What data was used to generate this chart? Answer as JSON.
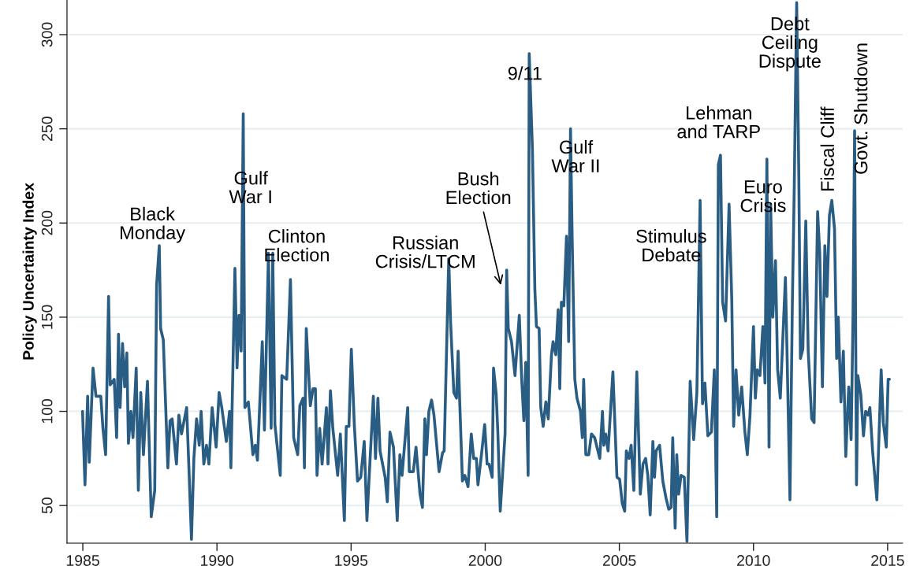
{
  "chart_data": {
    "type": "line",
    "ylabel": "Policy Uncertainty Index",
    "xlim": [
      1984.41,
      2015.56
    ],
    "ylim": [
      30,
      318.4
    ],
    "xticks": [
      1985,
      1990,
      1995,
      2000,
      2005,
      2010,
      2015
    ],
    "yticks": [
      50,
      100,
      150,
      200,
      250,
      300
    ],
    "grid": "y",
    "marker": "none",
    "line_style": "solid",
    "series": [
      {
        "color": "#2a5d84",
        "x": [
          1984.99,
          1985.08,
          1985.18,
          1985.24,
          1985.38,
          1985.49,
          1985.67,
          1985.75,
          1985.85,
          1985.96,
          1986.02,
          1986.17,
          1986.26,
          1986.33,
          1986.39,
          1986.48,
          1986.56,
          1986.64,
          1986.7,
          1986.79,
          1986.87,
          1986.99,
          1987.07,
          1987.16,
          1987.26,
          1987.41,
          1987.55,
          1987.68,
          1987.75,
          1987.85,
          1987.9,
          1988.0,
          1988.17,
          1988.25,
          1988.33,
          1988.49,
          1988.58,
          1988.68,
          1988.87,
          1988.96,
          1989.05,
          1989.14,
          1989.24,
          1989.34,
          1989.41,
          1989.51,
          1989.61,
          1989.7,
          1989.82,
          1989.97,
          1990.08,
          1990.18,
          1990.35,
          1990.47,
          1990.52,
          1990.67,
          1990.75,
          1990.82,
          1990.9,
          1990.98,
          1991.04,
          1991.17,
          1991.34,
          1991.43,
          1991.51,
          1991.69,
          1991.77,
          1991.92,
          1992.02,
          1992.08,
          1992.16,
          1992.36,
          1992.42,
          1992.6,
          1992.74,
          1992.86,
          1993.01,
          1993.09,
          1993.21,
          1993.26,
          1993.33,
          1993.48,
          1993.58,
          1993.67,
          1993.73,
          1993.83,
          1993.92,
          1994.08,
          1994.14,
          1994.23,
          1994.32,
          1994.5,
          1994.6,
          1994.75,
          1994.82,
          1994.92,
          1995.01,
          1995.12,
          1995.24,
          1995.36,
          1995.49,
          1995.59,
          1995.71,
          1995.83,
          1995.91,
          1996.0,
          1996.08,
          1996.27,
          1996.35,
          1996.45,
          1996.58,
          1996.72,
          1996.82,
          1996.9,
          1997.11,
          1997.17,
          1997.32,
          1997.42,
          1997.57,
          1997.66,
          1997.75,
          1997.81,
          1997.9,
          1998.0,
          1998.09,
          1998.21,
          1998.28,
          1998.41,
          1998.47,
          1998.64,
          1998.71,
          1998.83,
          1998.93,
          1998.99,
          1999.05,
          1999.15,
          1999.24,
          1999.36,
          1999.48,
          1999.57,
          1999.67,
          1999.73,
          1999.86,
          1999.98,
          2000.07,
          2000.14,
          2000.26,
          2000.31,
          2000.41,
          2000.47,
          2000.56,
          2000.74,
          2000.8,
          2000.86,
          2000.98,
          2001.11,
          2001.27,
          2001.36,
          2001.44,
          2001.51,
          2001.6,
          2001.64,
          2001.76,
          2001.85,
          2001.91,
          2002.01,
          2002.07,
          2002.16,
          2002.26,
          2002.35,
          2002.47,
          2002.53,
          2002.63,
          2002.72,
          2002.78,
          2002.84,
          2002.93,
          2003.03,
          2003.11,
          2003.18,
          2003.24,
          2003.34,
          2003.42,
          2003.55,
          2003.62,
          2003.67,
          2003.75,
          2003.86,
          2003.96,
          2004.08,
          2004.27,
          2004.37,
          2004.42,
          2004.49,
          2004.58,
          2004.76,
          2004.91,
          2005.01,
          2005.11,
          2005.2,
          2005.26,
          2005.36,
          2005.44,
          2005.54,
          2005.65,
          2005.78,
          2005.88,
          2005.98,
          2006.06,
          2006.15,
          2006.25,
          2006.31,
          2006.37,
          2006.5,
          2006.62,
          2006.74,
          2006.84,
          2006.93,
          2006.99,
          2007.08,
          2007.14,
          2007.21,
          2007.3,
          2007.42,
          2007.52,
          2007.64,
          2007.77,
          2007.89,
          2008.01,
          2008.1,
          2008.19,
          2008.3,
          2008.43,
          2008.54,
          2008.63,
          2008.69,
          2008.77,
          2008.85,
          2008.96,
          2009.09,
          2009.19,
          2009.26,
          2009.35,
          2009.45,
          2009.56,
          2009.68,
          2009.77,
          2009.87,
          2010.0,
          2010.07,
          2010.14,
          2010.24,
          2010.35,
          2010.43,
          2010.5,
          2010.58,
          2010.64,
          2010.72,
          2010.82,
          2010.9,
          2011.0,
          2011.19,
          2011.25,
          2011.36,
          2011.45,
          2011.52,
          2011.61,
          2011.69,
          2011.75,
          2011.84,
          2011.95,
          2012.04,
          2012.17,
          2012.26,
          2012.39,
          2012.47,
          2012.57,
          2012.66,
          2012.74,
          2012.83,
          2012.92,
          2013.02,
          2013.1,
          2013.16,
          2013.26,
          2013.35,
          2013.44,
          2013.55,
          2013.64,
          2013.71,
          2013.77,
          2013.84,
          2013.89,
          2014.0,
          2014.1,
          2014.18,
          2014.27,
          2014.34,
          2014.44,
          2014.6,
          2014.76,
          2014.84,
          2014.95,
          2015.02,
          2015.07
        ],
        "values": [
          100,
          61,
          108,
          73,
          123,
          108,
          108,
          91,
          77,
          161,
          114,
          117,
          86,
          141,
          102,
          136,
          113,
          131,
          83,
          100,
          86,
          123,
          58,
          110,
          77,
          116,
          44,
          58,
          167,
          188,
          144,
          138,
          70,
          95,
          96,
          72,
          98,
          88,
          102,
          68,
          32,
          75,
          96,
          82,
          100,
          72,
          82,
          72,
          102,
          81,
          110,
          102,
          84,
          100,
          70,
          176,
          123,
          151,
          132,
          258,
          102,
          105,
          77,
          82,
          74,
          137,
          90,
          184,
          91,
          184,
          93,
          66,
          119,
          117,
          170,
          86,
          77,
          103,
          107,
          70,
          144,
          103,
          112,
          112,
          66,
          91,
          72,
          102,
          72,
          111,
          91,
          66,
          88,
          42,
          92,
          92,
          133,
          93,
          63,
          65,
          84,
          42,
          75,
          108,
          75,
          107,
          79,
          65,
          52,
          89,
          81,
          42,
          77,
          66,
          102,
          68,
          68,
          81,
          56,
          49,
          96,
          77,
          100,
          106,
          98,
          79,
          68,
          78,
          79,
          181,
          147,
          110,
          107,
          132,
          105,
          63,
          66,
          60,
          88,
          75,
          75,
          61,
          77,
          93,
          72,
          72,
          65,
          123,
          109,
          89,
          47,
          88,
          175,
          144,
          137,
          119,
          151,
          117,
          95,
          126,
          66,
          290,
          239,
          165,
          145,
          144,
          102,
          92,
          105,
          96,
          130,
          137,
          130,
          154,
          112,
          158,
          156,
          193,
          137,
          250,
          193,
          117,
          107,
          100,
          86,
          117,
          77,
          77,
          88,
          86,
          75,
          100,
          82,
          88,
          79,
          121,
          65,
          64,
          51,
          47,
          79,
          75,
          82,
          58,
          121,
          56,
          72,
          75,
          66,
          45,
          84,
          65,
          79,
          82,
          63,
          54,
          48,
          49,
          86,
          38,
          77,
          56,
          66,
          65,
          31,
          116,
          85,
          110,
          212,
          104,
          115,
          87,
          89,
          122,
          44,
          231,
          236,
          158,
          148,
          210,
          160,
          92,
          122,
          98,
          113,
          89,
          77,
          98,
          145,
          107,
          122,
          119,
          145,
          115,
          234,
          81,
          210,
          150,
          180,
          122,
          107,
          171,
          132,
          53,
          158,
          219,
          317,
          225,
          128,
          133,
          201,
          132,
          96,
          94,
          206,
          184,
          113,
          188,
          161,
          204,
          212,
          197,
          128,
          150,
          105,
          132,
          76,
          113,
          85,
          150,
          249,
          61,
          119,
          109,
          87,
          100,
          98,
          102,
          79,
          53,
          122,
          94,
          81,
          117,
          117
        ]
      }
    ],
    "annotations": [
      "Black\nMonday",
      "Gulf\nWar I",
      "Clinton\nElection",
      "Russian\nCrisis/LTCM",
      {
        "text": "Bush\nElection",
        "x": 2000.6,
        "y": 166
      },
      "9/11",
      "Gulf\nWar II",
      "Stimulus\nDebate",
      "Lehman\nand TARP",
      "Euro\nCrisis",
      "Debt\nCeiling\nDispute",
      "Fiscal Cliff",
      "Govt. Shutdown"
    ]
  }
}
